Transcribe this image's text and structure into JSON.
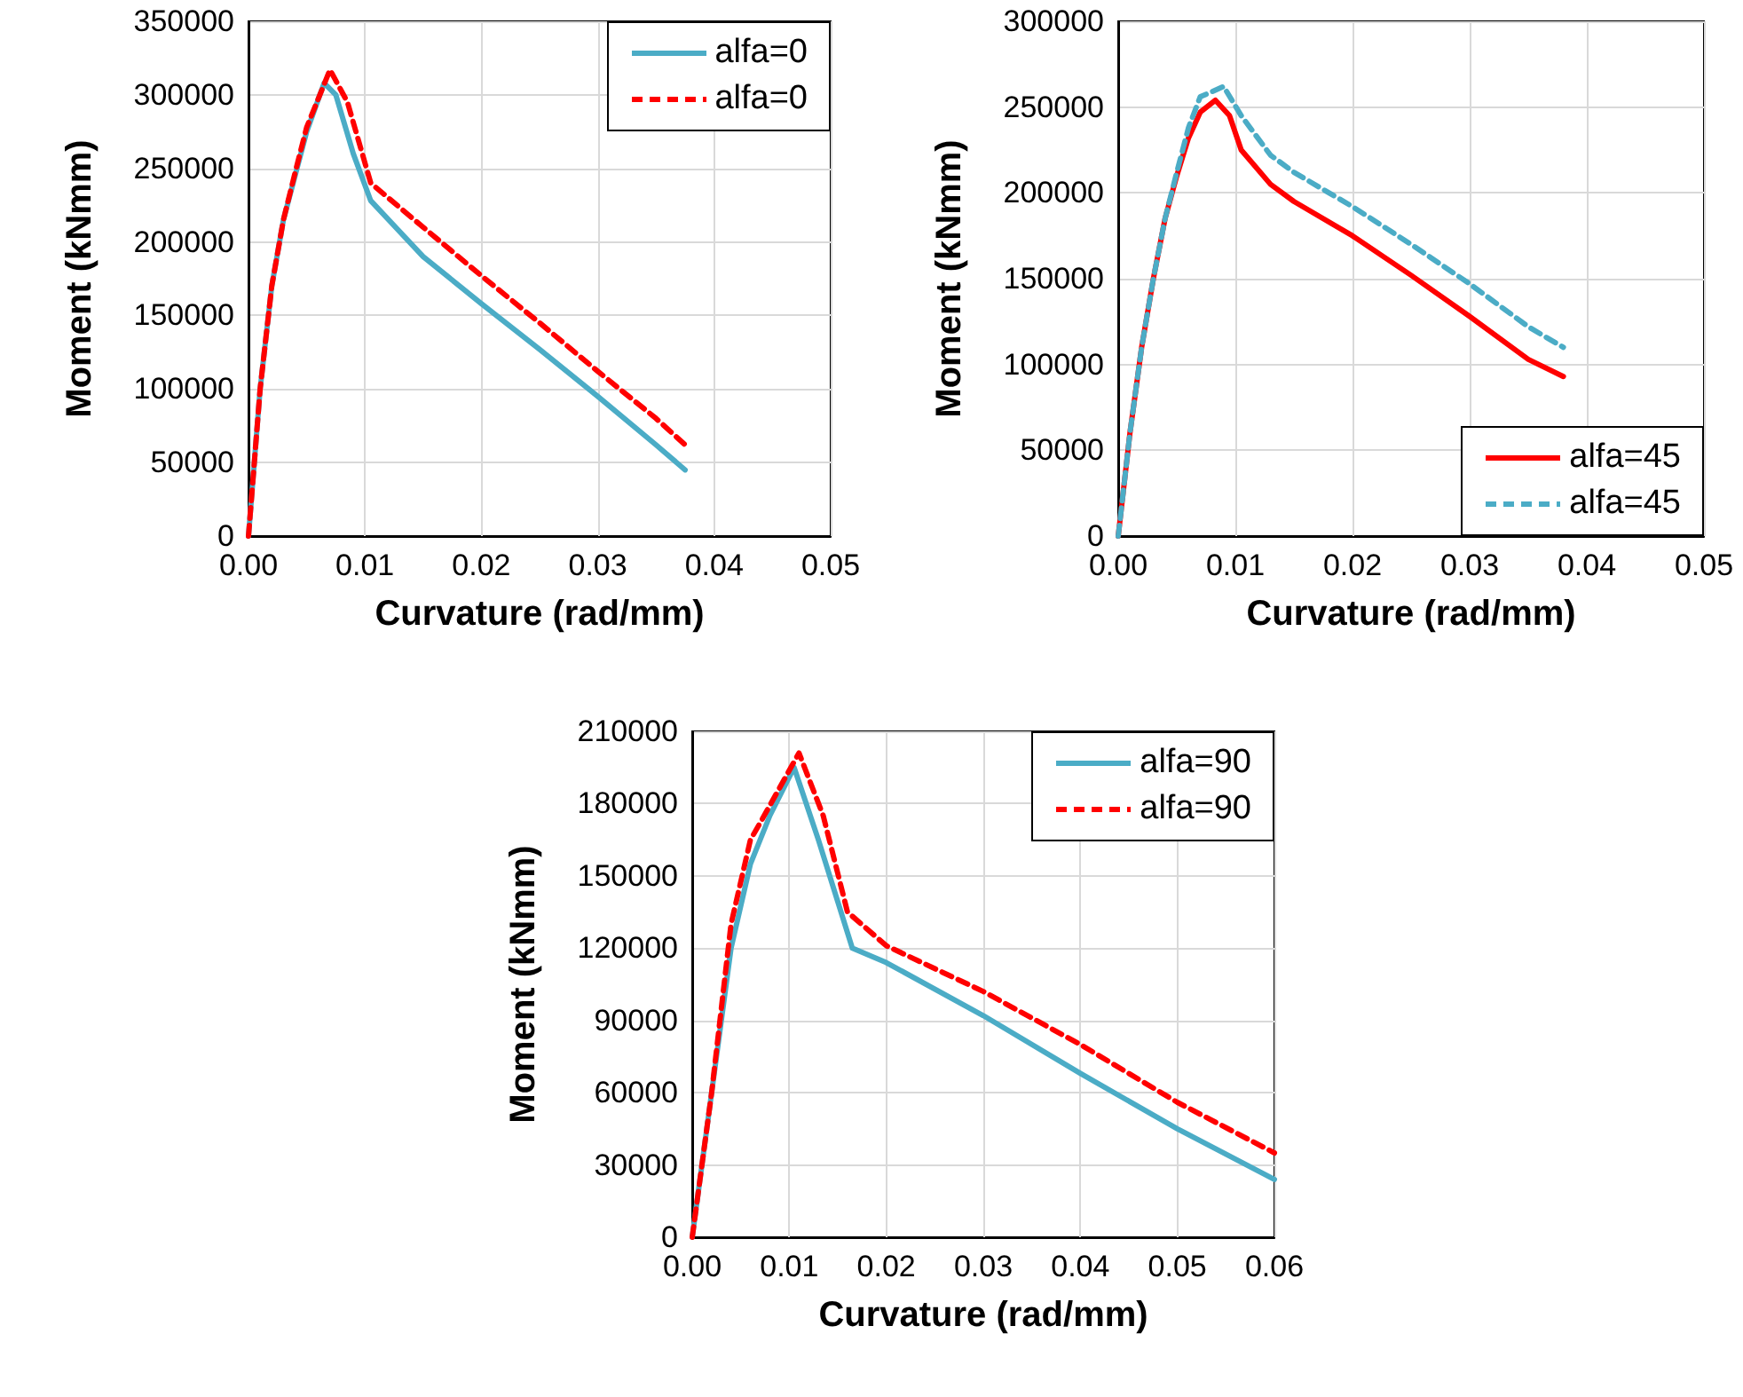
{
  "chart_data": [
    {
      "type": "line",
      "xlabel": "Curvature (rad/mm)",
      "ylabel": "Moment (kNmm)",
      "xlim": [
        0,
        0.05
      ],
      "ylim": [
        0,
        350000
      ],
      "xticks": [
        {
          "value": 0,
          "label": "0.00"
        },
        {
          "value": 0.01,
          "label": "0.01"
        },
        {
          "value": 0.02,
          "label": "0.02"
        },
        {
          "value": 0.03,
          "label": "0.03"
        },
        {
          "value": 0.04,
          "label": "0.04"
        },
        {
          "value": 0.05,
          "label": "0.05"
        }
      ],
      "yticks": [
        0,
        50000,
        100000,
        150000,
        200000,
        250000,
        300000,
        350000
      ],
      "grid": true,
      "legend": "top right",
      "marker": "none",
      "series": [
        {
          "name": "alfa=0",
          "color": "#4bacc6",
          "line_style": "solid",
          "x": [
            0,
            0.001,
            0.002,
            0.003,
            0.004,
            0.005,
            0.0065,
            0.0075,
            0.009,
            0.0105,
            0.015,
            0.02,
            0.025,
            0.03,
            0.035,
            0.0375
          ],
          "values": [
            0,
            100000,
            170000,
            215000,
            245000,
            275000,
            308000,
            300000,
            260000,
            228000,
            190000,
            158000,
            127000,
            95000,
            62000,
            45000
          ]
        },
        {
          "name": "alfa=0",
          "color": "#ff0000",
          "line_style": "dashed",
          "x": [
            0,
            0.001,
            0.002,
            0.003,
            0.004,
            0.005,
            0.007,
            0.0085,
            0.0105,
            0.015,
            0.02,
            0.025,
            0.03,
            0.035,
            0.0375
          ],
          "values": [
            0,
            100000,
            170000,
            215000,
            247000,
            278000,
            317000,
            295000,
            240000,
            210000,
            177000,
            145000,
            112000,
            80000,
            62000
          ]
        }
      ]
    },
    {
      "type": "line",
      "xlabel": "Curvature (rad/mm)",
      "ylabel": "Moment (kNmm)",
      "xlim": [
        0,
        0.05
      ],
      "ylim": [
        0,
        300000
      ],
      "xticks": [
        {
          "value": 0,
          "label": "0.00"
        },
        {
          "value": 0.01,
          "label": "0.01"
        },
        {
          "value": 0.02,
          "label": "0.02"
        },
        {
          "value": 0.03,
          "label": "0.03"
        },
        {
          "value": 0.04,
          "label": "0.04"
        },
        {
          "value": 0.05,
          "label": "0.05"
        }
      ],
      "yticks": [
        0,
        50000,
        100000,
        150000,
        200000,
        250000,
        300000
      ],
      "grid": true,
      "legend": "bottom right",
      "marker": "none",
      "series": [
        {
          "name": "alfa=45",
          "color": "#ff0000",
          "line_style": "solid",
          "x": [
            0,
            0.001,
            0.002,
            0.003,
            0.004,
            0.005,
            0.006,
            0.007,
            0.0083,
            0.0095,
            0.0105,
            0.013,
            0.015,
            0.02,
            0.025,
            0.03,
            0.035,
            0.038
          ],
          "values": [
            0,
            60000,
            110000,
            150000,
            185000,
            210000,
            232000,
            247000,
            254000,
            245000,
            225000,
            205000,
            195000,
            175000,
            152000,
            128000,
            103000,
            93000
          ]
        },
        {
          "name": "alfa=45",
          "color": "#4bacc6",
          "line_style": "dashed",
          "x": [
            0,
            0.001,
            0.002,
            0.003,
            0.004,
            0.005,
            0.006,
            0.007,
            0.009,
            0.0105,
            0.013,
            0.015,
            0.02,
            0.025,
            0.03,
            0.035,
            0.038
          ],
          "values": [
            0,
            60000,
            110000,
            150000,
            185000,
            212000,
            238000,
            256000,
            262000,
            245000,
            222000,
            212000,
            192000,
            170000,
            147000,
            122000,
            110000
          ]
        }
      ]
    },
    {
      "type": "line",
      "xlabel": "Curvature (rad/mm)",
      "ylabel": "Moment (kNmm)",
      "xlim": [
        0,
        0.06
      ],
      "ylim": [
        0,
        210000
      ],
      "xticks": [
        {
          "value": 0,
          "label": "0.00"
        },
        {
          "value": 0.01,
          "label": "0.01"
        },
        {
          "value": 0.02,
          "label": "0.02"
        },
        {
          "value": 0.03,
          "label": "0.03"
        },
        {
          "value": 0.04,
          "label": "0.04"
        },
        {
          "value": 0.05,
          "label": "0.05"
        },
        {
          "value": 0.06,
          "label": "0.06"
        }
      ],
      "yticks": [
        0,
        30000,
        60000,
        90000,
        120000,
        150000,
        180000,
        210000
      ],
      "grid": true,
      "legend": "top right",
      "marker": "none",
      "series": [
        {
          "name": "alfa=90",
          "color": "#4bacc6",
          "line_style": "solid",
          "x": [
            0,
            0.002,
            0.004,
            0.006,
            0.008,
            0.0105,
            0.013,
            0.0165,
            0.02,
            0.03,
            0.04,
            0.05,
            0.06
          ],
          "values": [
            0,
            60000,
            120000,
            155000,
            175000,
            195000,
            165000,
            120000,
            114000,
            92000,
            68000,
            45000,
            24000
          ]
        },
        {
          "name": "alfa=90",
          "color": "#ff0000",
          "line_style": "dashed",
          "x": [
            0,
            0.002,
            0.004,
            0.006,
            0.007,
            0.011,
            0.0135,
            0.016,
            0.02,
            0.03,
            0.04,
            0.05,
            0.06
          ],
          "values": [
            0,
            60000,
            130000,
            165000,
            172000,
            201000,
            175000,
            135000,
            121000,
            102000,
            80000,
            56000,
            35000
          ]
        }
      ]
    }
  ]
}
